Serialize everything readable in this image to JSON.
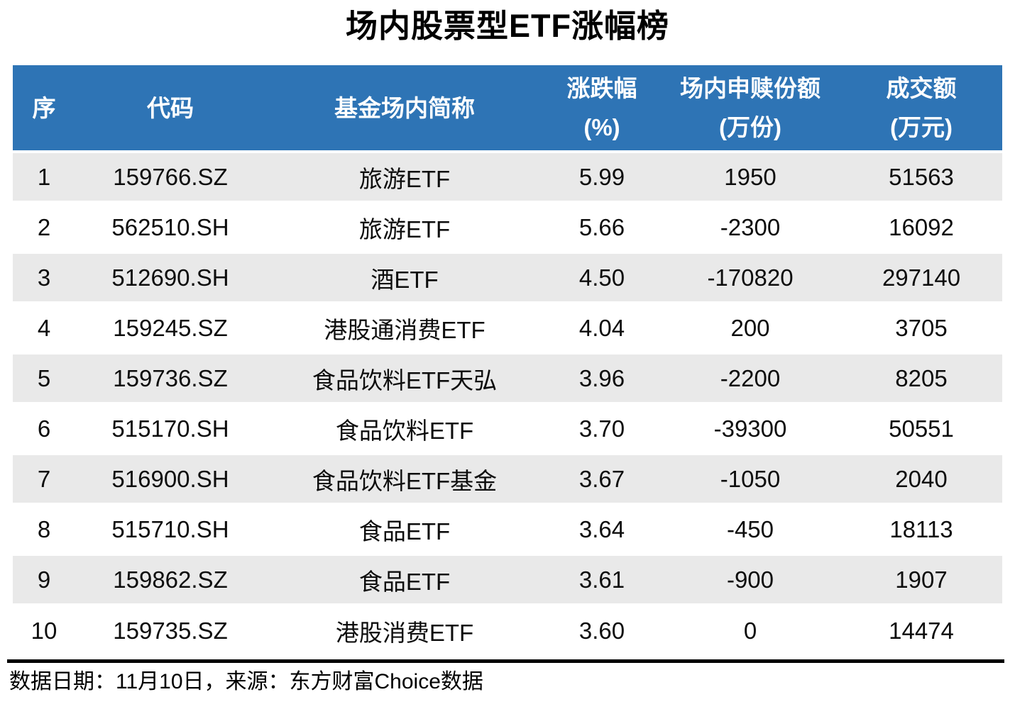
{
  "title": "场内股票型ETF涨幅榜",
  "table": {
    "header_color": "#2E74B5",
    "stripe_color": "#E9E9E9",
    "columns": [
      {
        "label": "序",
        "label2": ""
      },
      {
        "label": "代码",
        "label2": ""
      },
      {
        "label": "基金场内简称",
        "label2": ""
      },
      {
        "label": "涨跌幅",
        "label2": "(%)"
      },
      {
        "label": "场内申赎份额",
        "label2": "(万份)"
      },
      {
        "label": "成交额",
        "label2": "(万元)"
      }
    ],
    "rows": [
      {
        "rank": "1",
        "code": "159766.SZ",
        "name": "旅游ETF",
        "change_pct": "5.99",
        "shares": "1950",
        "turnover": "51563"
      },
      {
        "rank": "2",
        "code": "562510.SH",
        "name": "旅游ETF",
        "change_pct": "5.66",
        "shares": "-2300",
        "turnover": "16092"
      },
      {
        "rank": "3",
        "code": "512690.SH",
        "name": "酒ETF",
        "change_pct": "4.50",
        "shares": "-170820",
        "turnover": "297140"
      },
      {
        "rank": "4",
        "code": "159245.SZ",
        "name": "港股通消费ETF",
        "change_pct": "4.04",
        "shares": "200",
        "turnover": "3705"
      },
      {
        "rank": "5",
        "code": "159736.SZ",
        "name": "食品饮料ETF天弘",
        "change_pct": "3.96",
        "shares": "-2200",
        "turnover": "8205"
      },
      {
        "rank": "6",
        "code": "515170.SH",
        "name": "食品饮料ETF",
        "change_pct": "3.70",
        "shares": "-39300",
        "turnover": "50551"
      },
      {
        "rank": "7",
        "code": "516900.SH",
        "name": "食品饮料ETF基金",
        "change_pct": "3.67",
        "shares": "-1050",
        "turnover": "2040"
      },
      {
        "rank": "8",
        "code": "515710.SH",
        "name": "食品ETF",
        "change_pct": "3.64",
        "shares": "-450",
        "turnover": "18113"
      },
      {
        "rank": "9",
        "code": "159862.SZ",
        "name": "食品ETF",
        "change_pct": "3.61",
        "shares": "-900",
        "turnover": "1907"
      },
      {
        "rank": "10",
        "code": "159735.SZ",
        "name": "港股消费ETF",
        "change_pct": "3.60",
        "shares": "0",
        "turnover": "14474"
      }
    ]
  },
  "footer": {
    "text": "数据日期：11月10日，来源：东方财富Choice数据"
  },
  "chart_data": {
    "type": "table",
    "title": "场内股票型ETF涨幅榜",
    "columns": [
      "序",
      "代码",
      "基金场内简称",
      "涨跌幅(%)",
      "场内申赎份额(万份)",
      "成交额(万元)"
    ],
    "rows": [
      [
        1,
        "159766.SZ",
        "旅游ETF",
        5.99,
        1950,
        51563
      ],
      [
        2,
        "562510.SH",
        "旅游ETF",
        5.66,
        -2300,
        16092
      ],
      [
        3,
        "512690.SH",
        "酒ETF",
        4.5,
        -170820,
        297140
      ],
      [
        4,
        "159245.SZ",
        "港股通消费ETF",
        4.04,
        200,
        3705
      ],
      [
        5,
        "159736.SZ",
        "食品饮料ETF天弘",
        3.96,
        -2200,
        8205
      ],
      [
        6,
        "515170.SH",
        "食品饮料ETF",
        3.7,
        -39300,
        50551
      ],
      [
        7,
        "516900.SH",
        "食品饮料ETF基金",
        3.67,
        -1050,
        2040
      ],
      [
        8,
        "515710.SH",
        "食品ETF",
        3.64,
        -450,
        18113
      ],
      [
        9,
        "159862.SZ",
        "食品ETF",
        3.61,
        -900,
        1907
      ],
      [
        10,
        "159735.SZ",
        "港股消费ETF",
        3.6,
        0,
        14474
      ]
    ],
    "header_bg_color": "#2E74B5",
    "row_stripe_color": "#E9E9E9",
    "source_note": "数据日期：11月10日，来源：东方财富Choice数据"
  }
}
